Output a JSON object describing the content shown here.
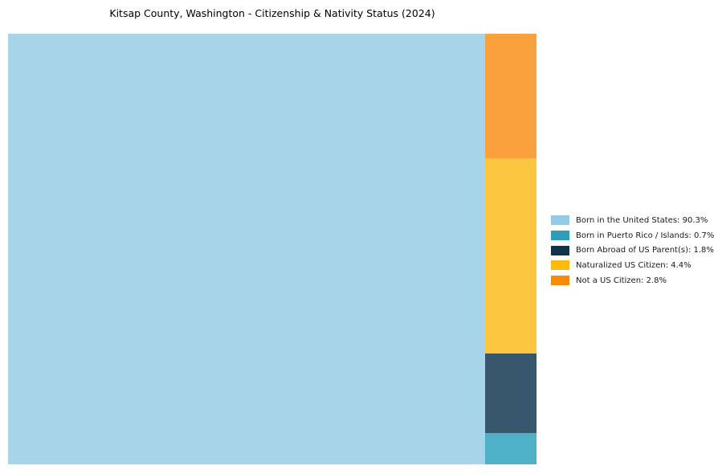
{
  "page": {
    "background_color": "#ffffff",
    "text_color": "#000000"
  },
  "chart_data": {
    "type": "treemap",
    "title": "Kitsap County, Washington - Citizenship & Nativity Status (2024)",
    "legend_position": "right-center",
    "grid": false,
    "axes": false,
    "series": [
      {
        "label": "Born in the United States",
        "value": 90.3,
        "legend_label": "Born in the United States: 90.3%",
        "fill_color": "#A7D4E9",
        "legend_color": "#93CBE4"
      },
      {
        "label": "Born in Puerto Rico / Islands",
        "value": 0.7,
        "legend_label": "Born in Puerto Rico / Islands: 0.7%",
        "fill_color": "#4FB1C6",
        "legend_color": "#2E9EB8"
      },
      {
        "label": "Born Abroad of US Parent(s)",
        "value": 1.8,
        "legend_label": "Born Abroad of US Parent(s): 1.8%",
        "fill_color": "#37576C",
        "legend_color": "#12334A"
      },
      {
        "label": "Naturalized US Citizen",
        "value": 4.4,
        "legend_label": "Naturalized US Citizen: 4.4%",
        "fill_color": "#FDC640",
        "legend_color": "#FDB90D"
      },
      {
        "label": "Not a US Citizen",
        "value": 2.8,
        "legend_label": "Not a US Citizen: 2.8%",
        "fill_color": "#F9A13D",
        "legend_color": "#F78C0C"
      }
    ]
  }
}
